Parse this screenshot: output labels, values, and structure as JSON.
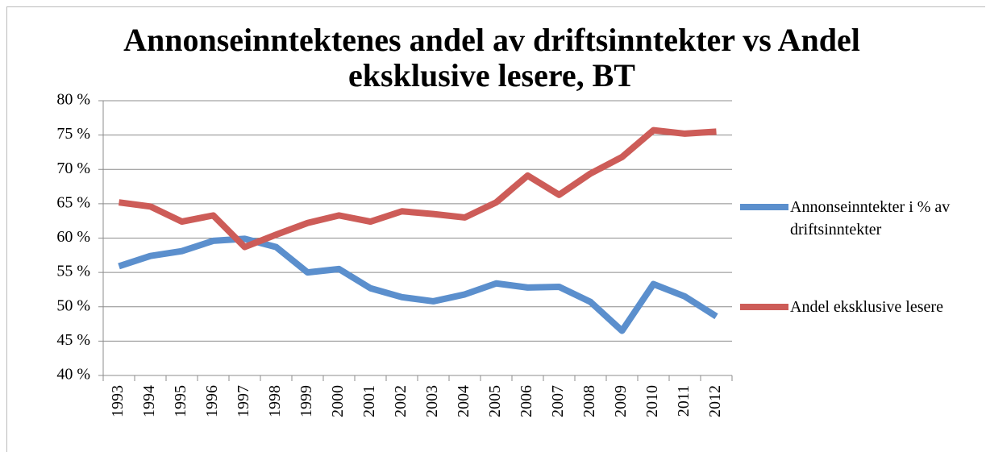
{
  "chart_data": {
    "type": "line",
    "title": "Annonseinntektenes andel av driftsinntekter vs Andel eksklusive lesere, BT",
    "categories": [
      "1993",
      "1994",
      "1995",
      "1996",
      "1997",
      "1998",
      "1999",
      "2000",
      "2001",
      "2002",
      "2003",
      "2004",
      "2005",
      "2006",
      "2007",
      "2008",
      "2009",
      "2010",
      "2011",
      "2012"
    ],
    "series": [
      {
        "name": "Annonseinntekter i % av driftsinntekter",
        "color": "#5b8fcd",
        "values": [
          55.9,
          57.4,
          58.1,
          59.6,
          59.9,
          58.7,
          55.0,
          55.5,
          52.7,
          51.4,
          50.8,
          51.8,
          53.4,
          52.8,
          52.9,
          50.7,
          46.5,
          53.3,
          51.5,
          48.6
        ]
      },
      {
        "name": "Andel eksklusive lesere",
        "color": "#cd5c58",
        "values": [
          65.2,
          64.6,
          62.4,
          63.3,
          58.7,
          60.5,
          62.2,
          63.3,
          62.4,
          63.9,
          63.5,
          63.0,
          65.2,
          69.1,
          66.3,
          69.4,
          71.8,
          75.7,
          75.2,
          75.5
        ]
      }
    ],
    "ylim": [
      40,
      80
    ],
    "yticks": [
      {
        "value": 40,
        "label": "40 %"
      },
      {
        "value": 45,
        "label": "45 %"
      },
      {
        "value": 50,
        "label": "50 %"
      },
      {
        "value": 55,
        "label": "55 %"
      },
      {
        "value": 60,
        "label": "60 %"
      },
      {
        "value": 65,
        "label": "65 %"
      },
      {
        "value": 70,
        "label": "70 %"
      },
      {
        "value": 75,
        "label": "75 %"
      },
      {
        "value": 80,
        "label": "80 %"
      }
    ],
    "grid": true,
    "legend": "right"
  }
}
